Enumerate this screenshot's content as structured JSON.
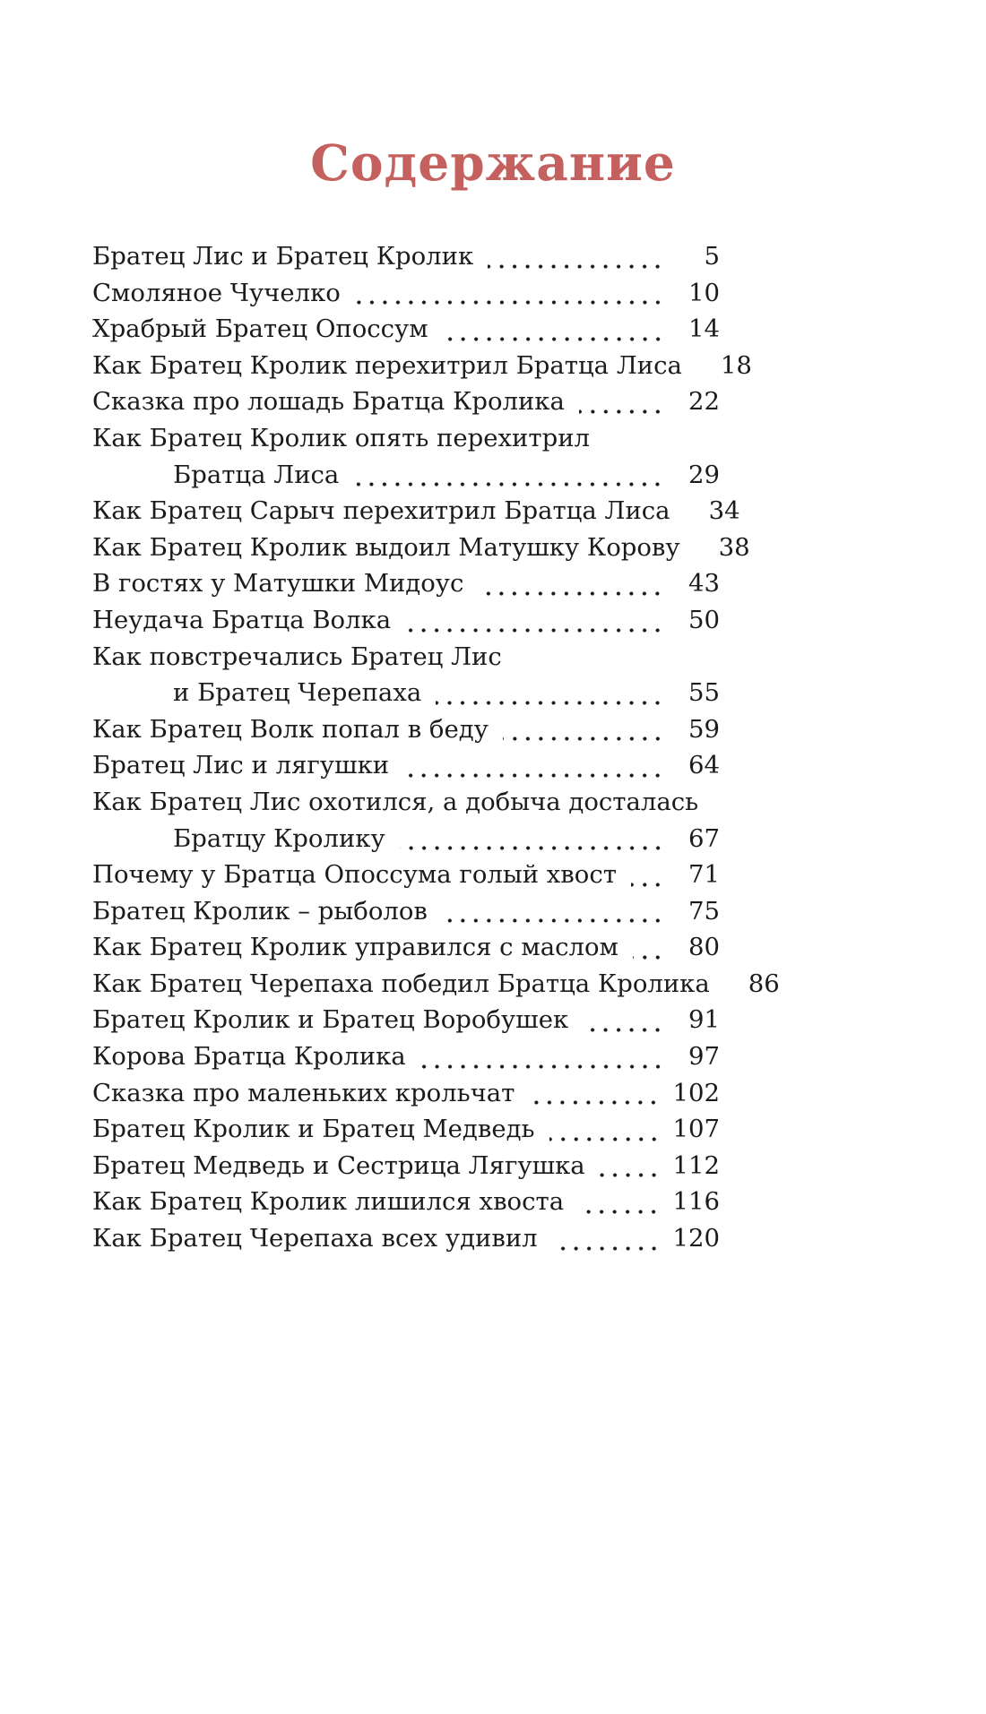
{
  "page": {
    "title": "Содержание"
  },
  "colors": {
    "title_accent": "#c4605d",
    "text_ink": "#1b1b1b",
    "paper": "#ffffff"
  },
  "toc": {
    "entries": [
      {
        "lines": [
          "Братец Лис и Братец Кролик"
        ],
        "page": "5"
      },
      {
        "lines": [
          "Смоляное Чучелко"
        ],
        "page": "10"
      },
      {
        "lines": [
          "Храбрый Братец Опоссум"
        ],
        "page": "14"
      },
      {
        "lines": [
          "Как Братец Кролик перехитрил Братца Лиса"
        ],
        "page": "18"
      },
      {
        "lines": [
          "Сказка про лошадь Братца Кролика"
        ],
        "page": "22"
      },
      {
        "lines": [
          "Как Братец Кролик опять перехитрил",
          "Братца Лиса"
        ],
        "page": "29"
      },
      {
        "lines": [
          "Как Братец Сарыч перехитрил Братца Лиса"
        ],
        "page": "34"
      },
      {
        "lines": [
          "Как Братец Кролик выдоил Матушку Корову"
        ],
        "page": "38"
      },
      {
        "lines": [
          "В гостях у Матушки Мидоус"
        ],
        "page": "43"
      },
      {
        "lines": [
          "Неудача Братца Волка"
        ],
        "page": "50"
      },
      {
        "lines": [
          "Как повстречались Братец Лис",
          "и Братец Черепаха"
        ],
        "page": "55"
      },
      {
        "lines": [
          "Как Братец Волк попал в беду"
        ],
        "page": "59"
      },
      {
        "lines": [
          "Братец Лис и лягушки"
        ],
        "page": "64"
      },
      {
        "lines": [
          "Как Братец Лис охотился, а добыча досталась",
          "Братцу Кролику"
        ],
        "page": "67"
      },
      {
        "lines": [
          "Почему у Братца Опоссума голый хвост"
        ],
        "page": "71"
      },
      {
        "lines": [
          "Братец Кролик – рыболов"
        ],
        "page": "75"
      },
      {
        "lines": [
          "Как Братец Кролик управился с маслом"
        ],
        "page": "80"
      },
      {
        "lines": [
          "Как Братец Черепаха победил Братца Кролика"
        ],
        "page": "86"
      },
      {
        "lines": [
          "Братец Кролик и Братец Воробушек"
        ],
        "page": "91"
      },
      {
        "lines": [
          "Корова Братца Кролика"
        ],
        "page": "97"
      },
      {
        "lines": [
          "Сказка про маленьких крольчат"
        ],
        "page": "102"
      },
      {
        "lines": [
          "Братец Кролик и Братец Медведь"
        ],
        "page": "107"
      },
      {
        "lines": [
          "Братец Медведь и Сестрица Лягушка"
        ],
        "page": "112"
      },
      {
        "lines": [
          "Как Братец Кролик лишился хвоста"
        ],
        "page": "116"
      },
      {
        "lines": [
          "Как Братец Черепаха всех удивил"
        ],
        "page": "120"
      }
    ]
  }
}
